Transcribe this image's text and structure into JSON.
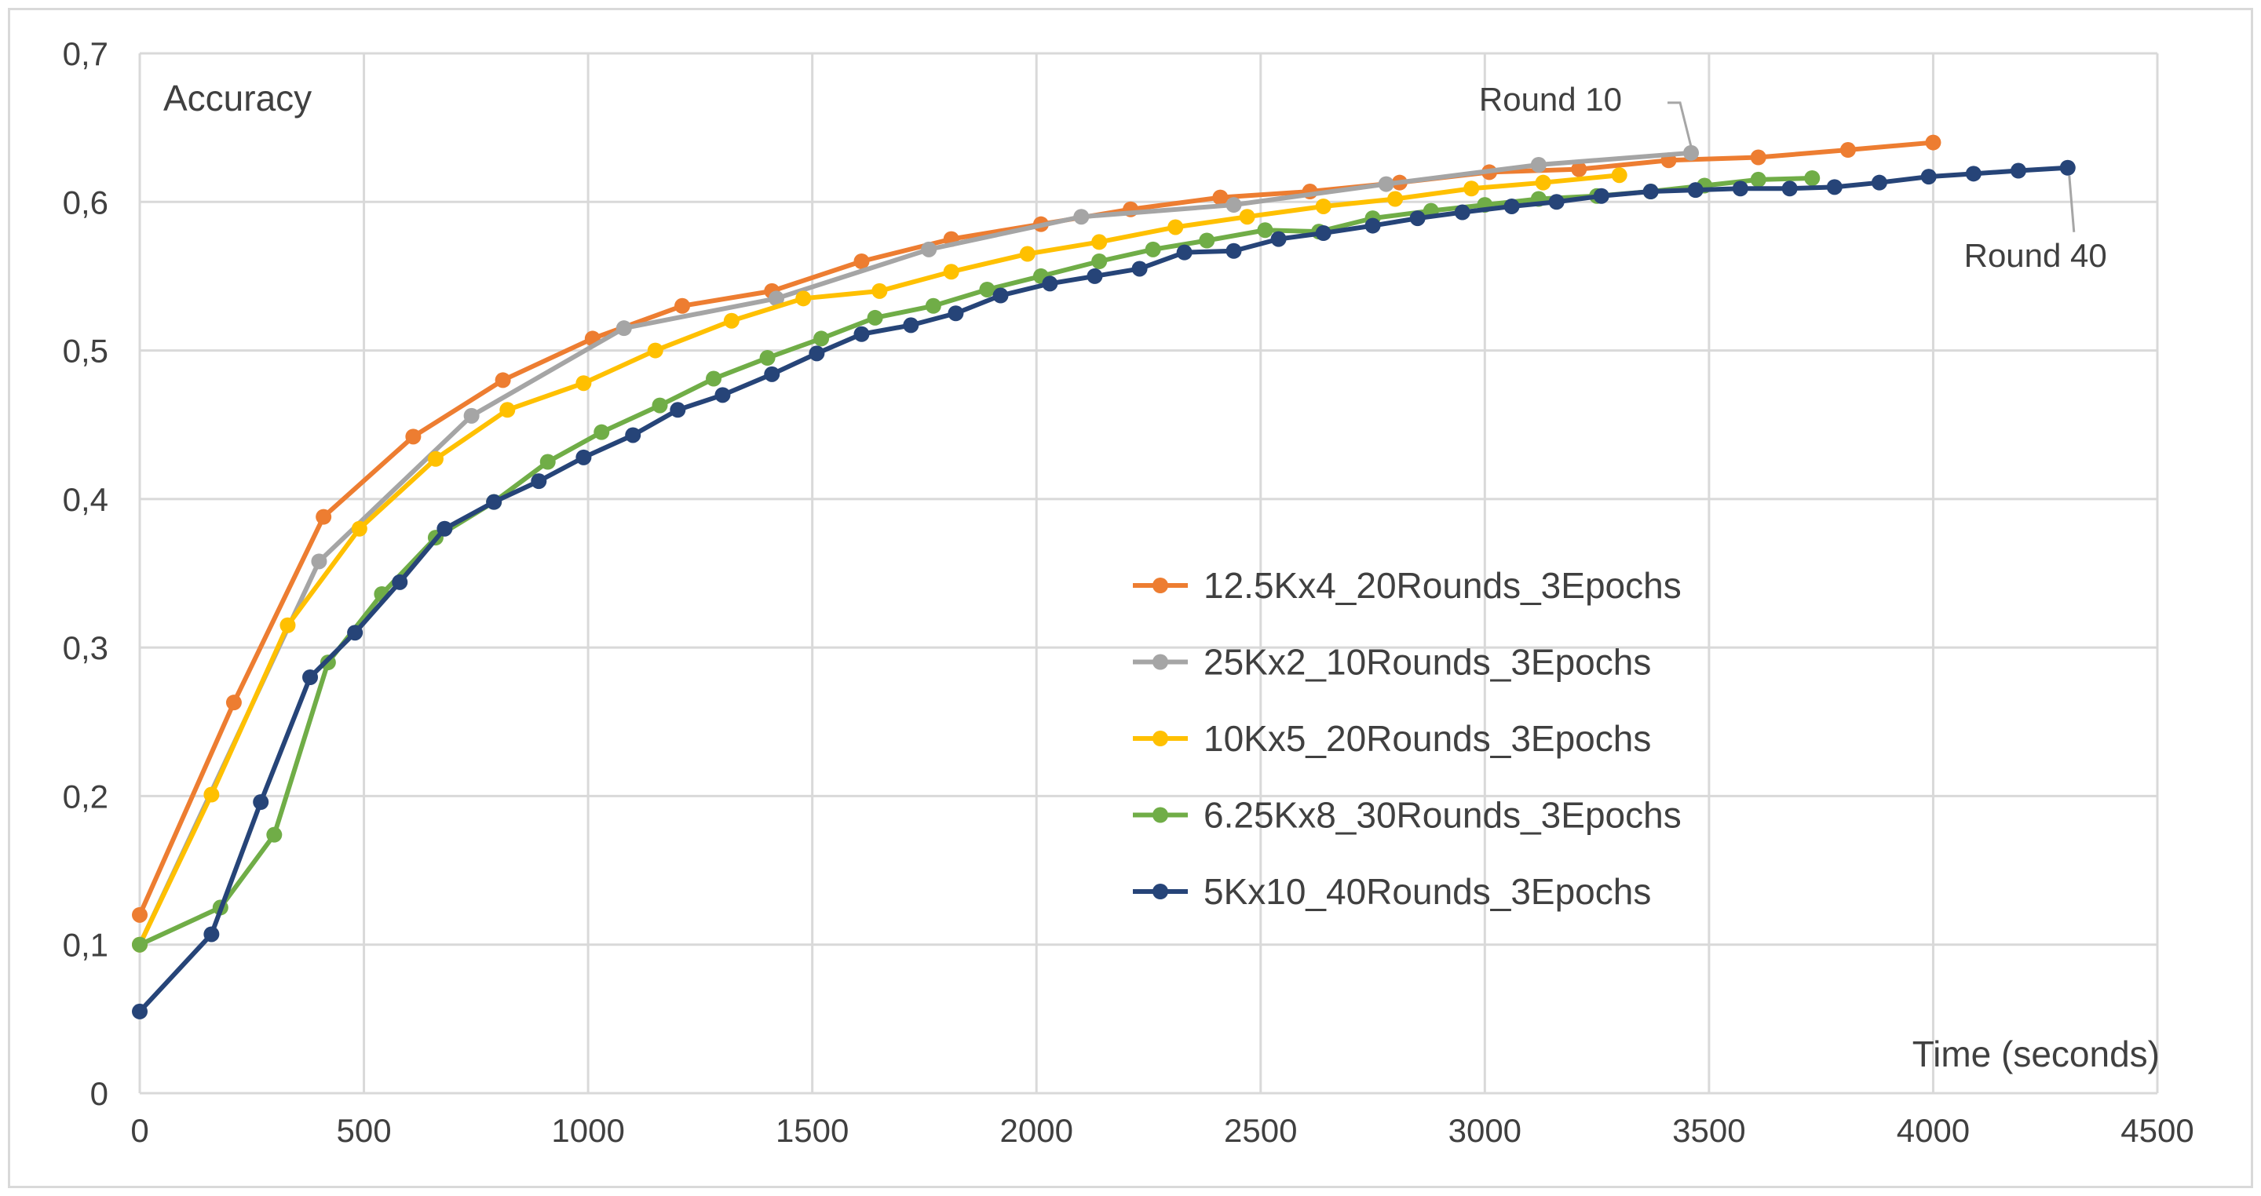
{
  "chart_data": {
    "type": "line",
    "title": "",
    "ylabel": "Accuracy",
    "xlabel": "Time (seconds)",
    "xlim": [
      0,
      4500
    ],
    "ylim": [
      0,
      0.7
    ],
    "x_ticks": [
      "0",
      "500",
      "1000",
      "1500",
      "2000",
      "2500",
      "3000",
      "3500",
      "4000",
      "4500"
    ],
    "y_ticks": [
      "0",
      "0,1",
      "0,2",
      "0,3",
      "0,4",
      "0,5",
      "0,6",
      "0,7"
    ],
    "grid": true,
    "legend_position": "center-right",
    "series": [
      {
        "name": "12.5Kx4_20Rounds_3Epochs",
        "color": "#ED7D31",
        "x": [
          0,
          210,
          410,
          610,
          810,
          1010,
          1210,
          1410,
          1610,
          1810,
          2010,
          2210,
          2410,
          2610,
          2810,
          3010,
          3210,
          3410,
          3610,
          3810,
          4000
        ],
        "y": [
          0.12,
          0.263,
          0.388,
          0.442,
          0.48,
          0.508,
          0.53,
          0.54,
          0.56,
          0.575,
          0.585,
          0.595,
          0.603,
          0.607,
          0.613,
          0.62,
          0.622,
          0.628,
          0.63,
          0.635,
          0.64
        ]
      },
      {
        "name": "25Kx2_10Rounds_3Epochs",
        "color": "#A5A5A5",
        "x": [
          0,
          400,
          740,
          1080,
          1420,
          1760,
          2100,
          2440,
          2780,
          3120,
          3460
        ],
        "y": [
          0.1,
          0.358,
          0.456,
          0.515,
          0.535,
          0.568,
          0.59,
          0.598,
          0.612,
          0.625,
          0.633
        ]
      },
      {
        "name": "10Kx5_20Rounds_3Epochs",
        "color": "#FFC000",
        "x": [
          0,
          160,
          330,
          490,
          660,
          820,
          990,
          1150,
          1320,
          1480,
          1650,
          1810,
          1980,
          2140,
          2310,
          2470,
          2640,
          2800,
          2970,
          3130,
          3300
        ],
        "y": [
          0.1,
          0.201,
          0.315,
          0.38,
          0.427,
          0.46,
          0.478,
          0.5,
          0.52,
          0.535,
          0.54,
          0.553,
          0.565,
          0.573,
          0.583,
          0.59,
          0.597,
          0.602,
          0.609,
          0.613,
          0.618
        ]
      },
      {
        "name": "6.25Kx8_30Rounds_3Epochs",
        "color": "#70AD47",
        "x": [
          0,
          180,
          300,
          420,
          540,
          660,
          790,
          910,
          1030,
          1160,
          1280,
          1400,
          1520,
          1640,
          1770,
          1890,
          2010,
          2140,
          2260,
          2380,
          2510,
          2630,
          2750,
          2880,
          3000,
          3120,
          3250,
          3370,
          3490,
          3610,
          3730
        ],
        "y": [
          0.1,
          0.125,
          0.174,
          0.29,
          0.336,
          0.374,
          0.398,
          0.425,
          0.445,
          0.463,
          0.481,
          0.495,
          0.508,
          0.522,
          0.53,
          0.541,
          0.55,
          0.56,
          0.568,
          0.574,
          0.581,
          0.58,
          0.589,
          0.594,
          0.598,
          0.602,
          0.604,
          0.607,
          0.611,
          0.615,
          0.616
        ]
      },
      {
        "name": "5Kx10_40Rounds_3Epochs",
        "color": "#264478",
        "x": [
          0,
          160,
          270,
          380,
          480,
          580,
          680,
          790,
          890,
          990,
          1100,
          1200,
          1300,
          1410,
          1510,
          1610,
          1720,
          1820,
          1920,
          2030,
          2130,
          2230,
          2330,
          2440,
          2540,
          2640,
          2750,
          2850,
          2950,
          3060,
          3160,
          3260,
          3370,
          3470,
          3570,
          3680,
          3780,
          3880,
          3990,
          4090,
          4190,
          4300
        ],
        "y": [
          0.055,
          0.107,
          0.196,
          0.28,
          0.31,
          0.344,
          0.38,
          0.398,
          0.412,
          0.428,
          0.443,
          0.46,
          0.47,
          0.484,
          0.498,
          0.511,
          0.517,
          0.525,
          0.537,
          0.545,
          0.55,
          0.555,
          0.566,
          0.567,
          0.575,
          0.579,
          0.584,
          0.589,
          0.593,
          0.597,
          0.6,
          0.604,
          0.607,
          0.608,
          0.609,
          0.609,
          0.61,
          0.613,
          0.617,
          0.619,
          0.621,
          0.623
        ]
      }
    ],
    "annotations": [
      {
        "text": "Round 10",
        "series": "25Kx2_10Rounds_3Epochs",
        "x": 3460,
        "y": 0.633
      },
      {
        "text": "Round 40",
        "series": "5Kx10_40Rounds_3Epochs",
        "x": 4300,
        "y": 0.623
      }
    ]
  }
}
